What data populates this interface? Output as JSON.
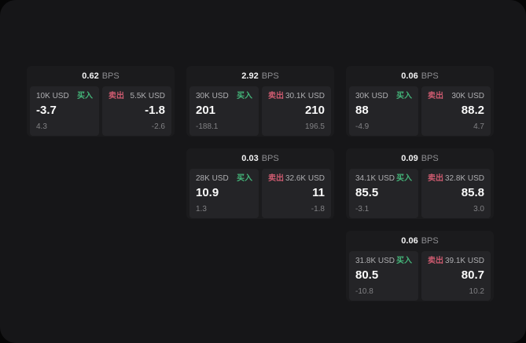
{
  "labels": {
    "bps_suffix": "BPS",
    "buy": "买入",
    "sell": "卖出"
  },
  "colors": {
    "page_bg": "#161618",
    "card_bg": "#1b1b1d",
    "panel_bg": "#242427",
    "buy": "#44b479",
    "sell": "#cc5a6f"
  },
  "cards": [
    {
      "bps": "0.62",
      "buy": {
        "size": "10K USD",
        "price": "-3.7",
        "sub": "4.3"
      },
      "sell": {
        "size": "5.5K USD",
        "price": "-1.8",
        "sub": "-2.6"
      }
    },
    {
      "bps": "2.92",
      "buy": {
        "size": "30K USD",
        "price": "201",
        "sub": "-188.1"
      },
      "sell": {
        "size": "30.1K USD",
        "price": "210",
        "sub": "196.5"
      }
    },
    {
      "bps": "0.06",
      "buy": {
        "size": "30K USD",
        "price": "88",
        "sub": "-4.9"
      },
      "sell": {
        "size": "30K USD",
        "price": "88.2",
        "sub": "4.7"
      }
    },
    {
      "bps": "0.03",
      "buy": {
        "size": "28K USD",
        "price": "10.9",
        "sub": "1.3"
      },
      "sell": {
        "size": "32.6K USD",
        "price": "11",
        "sub": "-1.8"
      }
    },
    {
      "bps": "0.09",
      "buy": {
        "size": "34.1K USD",
        "price": "85.5",
        "sub": "-3.1"
      },
      "sell": {
        "size": "32.8K USD",
        "price": "85.8",
        "sub": "3.0"
      }
    },
    {
      "bps": "0.06",
      "buy": {
        "size": "31.8K USD",
        "price": "80.5",
        "sub": "-10.8"
      },
      "sell": {
        "size": "39.1K USD",
        "price": "80.7",
        "sub": "10.2"
      }
    }
  ]
}
